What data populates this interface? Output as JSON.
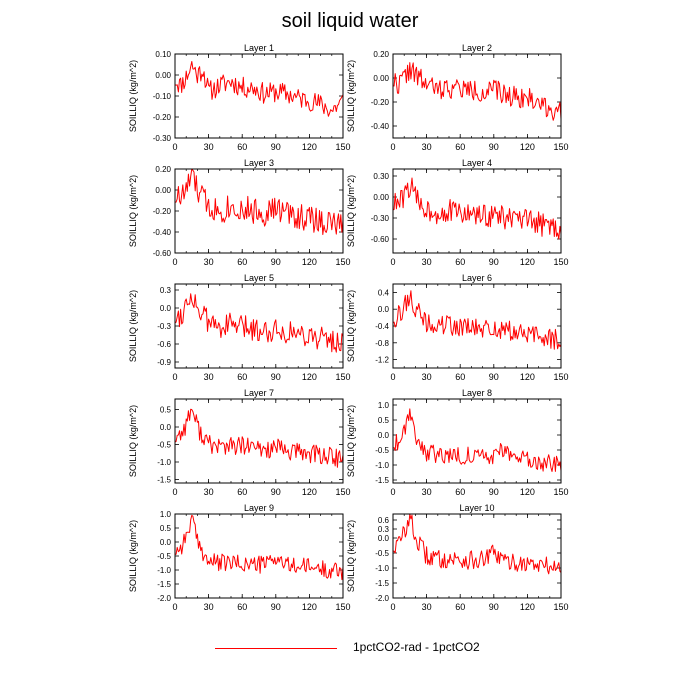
{
  "title": "soil liquid water",
  "legend": {
    "label": "1pctCO2-rad - 1pctCO2",
    "color": "#ff0000"
  },
  "chart_data": [
    {
      "type": "line",
      "title": "Layer 1",
      "ylabel": "SOILLIQ  (kg/m^2)",
      "xlim": [
        0,
        150
      ],
      "ylim": [
        -0.3,
        0.1
      ],
      "xticks": [
        "0",
        "30",
        "60",
        "90",
        "120",
        "150"
      ],
      "yticks": [
        "0.10",
        "0.00",
        "-0.10",
        "-0.20",
        "-0.30"
      ],
      "ytick_values": [
        0.1,
        0.0,
        -0.1,
        -0.2,
        -0.3
      ],
      "series": [
        {
          "color": "#ff0000",
          "anchors": [
            [
              0,
              -0.02
            ],
            [
              5,
              -0.05
            ],
            [
              10,
              -0.01
            ],
            [
              15,
              0.05
            ],
            [
              20,
              0.0
            ],
            [
              25,
              0.03
            ],
            [
              30,
              -0.08
            ],
            [
              40,
              -0.05
            ],
            [
              50,
              -0.03
            ],
            [
              60,
              -0.06
            ],
            [
              70,
              -0.06
            ],
            [
              80,
              -0.09
            ],
            [
              90,
              -0.08
            ],
            [
              100,
              -0.09
            ],
            [
              110,
              -0.11
            ],
            [
              120,
              -0.12
            ],
            [
              130,
              -0.14
            ],
            [
              140,
              -0.17
            ],
            [
              150,
              -0.12
            ]
          ],
          "amp": 0.05,
          "seed": 11
        }
      ]
    },
    {
      "type": "line",
      "title": "Layer 2",
      "ylabel": "SOILLIQ  (kg/m^2)",
      "xlim": [
        0,
        150
      ],
      "ylim": [
        -0.5,
        0.2
      ],
      "xticks": [
        "0",
        "30",
        "60",
        "90",
        "120",
        "150"
      ],
      "yticks": [
        "0.20",
        "0.00",
        "-0.20",
        "-0.40"
      ],
      "ytick_values": [
        0.2,
        0.0,
        -0.2,
        -0.4
      ],
      "series": [
        {
          "color": "#ff0000",
          "anchors": [
            [
              0,
              -0.02
            ],
            [
              5,
              -0.05
            ],
            [
              10,
              0.0
            ],
            [
              15,
              0.08
            ],
            [
              20,
              0.02
            ],
            [
              30,
              -0.05
            ],
            [
              40,
              -0.1
            ],
            [
              50,
              -0.08
            ],
            [
              60,
              -0.09
            ],
            [
              70,
              -0.1
            ],
            [
              80,
              -0.12
            ],
            [
              90,
              -0.1
            ],
            [
              100,
              -0.14
            ],
            [
              110,
              -0.15
            ],
            [
              120,
              -0.17
            ],
            [
              130,
              -0.2
            ],
            [
              140,
              -0.25
            ],
            [
              150,
              -0.3
            ]
          ],
          "amp": 0.09,
          "seed": 22
        }
      ]
    },
    {
      "type": "line",
      "title": "Layer 3",
      "ylabel": "SOILLIQ  (kg/m^2)",
      "xlim": [
        0,
        150
      ],
      "ylim": [
        -0.6,
        0.2
      ],
      "xticks": [
        "0",
        "30",
        "60",
        "90",
        "120",
        "150"
      ],
      "yticks": [
        "0.20",
        "0.00",
        "-0.20",
        "-0.40",
        "-0.60"
      ],
      "ytick_values": [
        0.2,
        0.0,
        -0.2,
        -0.4,
        -0.6
      ],
      "series": [
        {
          "color": "#ff0000",
          "anchors": [
            [
              0,
              -0.05
            ],
            [
              5,
              -0.08
            ],
            [
              10,
              0.0
            ],
            [
              15,
              0.15
            ],
            [
              20,
              0.0
            ],
            [
              30,
              -0.15
            ],
            [
              40,
              -0.2
            ],
            [
              50,
              -0.15
            ],
            [
              60,
              -0.18
            ],
            [
              70,
              -0.2
            ],
            [
              80,
              -0.22
            ],
            [
              90,
              -0.18
            ],
            [
              100,
              -0.22
            ],
            [
              110,
              -0.25
            ],
            [
              120,
              -0.27
            ],
            [
              130,
              -0.3
            ],
            [
              140,
              -0.32
            ],
            [
              150,
              -0.35
            ]
          ],
          "amp": 0.13,
          "seed": 33
        }
      ]
    },
    {
      "type": "line",
      "title": "Layer 4",
      "ylabel": "SOILLIQ  (kg/m^2)",
      "xlim": [
        0,
        150
      ],
      "ylim": [
        -0.8,
        0.4
      ],
      "xticks": [
        "0",
        "30",
        "60",
        "90",
        "120",
        "150"
      ],
      "yticks": [
        "0.30",
        "0.00",
        "-0.30",
        "-0.60"
      ],
      "ytick_values": [
        0.3,
        0.0,
        -0.3,
        -0.6
      ],
      "series": [
        {
          "color": "#ff0000",
          "anchors": [
            [
              0,
              -0.1
            ],
            [
              5,
              -0.1
            ],
            [
              10,
              0.0
            ],
            [
              15,
              0.18
            ],
            [
              20,
              0.0
            ],
            [
              30,
              -0.18
            ],
            [
              40,
              -0.22
            ],
            [
              50,
              -0.2
            ],
            [
              60,
              -0.23
            ],
            [
              70,
              -0.25
            ],
            [
              80,
              -0.28
            ],
            [
              90,
              -0.25
            ],
            [
              100,
              -0.3
            ],
            [
              110,
              -0.33
            ],
            [
              120,
              -0.35
            ],
            [
              130,
              -0.38
            ],
            [
              140,
              -0.42
            ],
            [
              150,
              -0.45
            ]
          ],
          "amp": 0.17,
          "seed": 44
        }
      ]
    },
    {
      "type": "line",
      "title": "Layer 5",
      "ylabel": "SOILLIQ  (kg/m^2)",
      "xlim": [
        0,
        150
      ],
      "ylim": [
        -1.0,
        0.4
      ],
      "xticks": [
        "0",
        "30",
        "60",
        "90",
        "120",
        "150"
      ],
      "yticks": [
        "0.3",
        "0.0",
        "-0.3",
        "-0.6",
        "-0.9"
      ],
      "ytick_values": [
        0.3,
        0.0,
        -0.3,
        -0.6,
        -0.9
      ],
      "series": [
        {
          "color": "#ff0000",
          "anchors": [
            [
              0,
              -0.15
            ],
            [
              5,
              -0.12
            ],
            [
              10,
              0.05
            ],
            [
              15,
              0.25
            ],
            [
              20,
              0.0
            ],
            [
              30,
              -0.25
            ],
            [
              40,
              -0.3
            ],
            [
              50,
              -0.28
            ],
            [
              60,
              -0.32
            ],
            [
              70,
              -0.35
            ],
            [
              80,
              -0.38
            ],
            [
              90,
              -0.35
            ],
            [
              100,
              -0.4
            ],
            [
              110,
              -0.42
            ],
            [
              120,
              -0.45
            ],
            [
              130,
              -0.5
            ],
            [
              140,
              -0.55
            ],
            [
              150,
              -0.58
            ]
          ],
          "amp": 0.2,
          "seed": 55
        }
      ]
    },
    {
      "type": "line",
      "title": "Layer 6",
      "ylabel": "SOILLIQ  (kg/m^2)",
      "xlim": [
        0,
        150
      ],
      "ylim": [
        -1.4,
        0.6
      ],
      "xticks": [
        "0",
        "30",
        "60",
        "90",
        "120",
        "150"
      ],
      "yticks": [
        "0.4",
        "0.0",
        "-0.4",
        "-0.8",
        "-1.2"
      ],
      "ytick_values": [
        0.4,
        0.0,
        -0.4,
        -0.8,
        -1.2
      ],
      "series": [
        {
          "color": "#ff0000",
          "anchors": [
            [
              0,
              -0.2
            ],
            [
              5,
              -0.15
            ],
            [
              10,
              0.05
            ],
            [
              15,
              0.35
            ],
            [
              20,
              0.0
            ],
            [
              30,
              -0.35
            ],
            [
              40,
              -0.4
            ],
            [
              50,
              -0.38
            ],
            [
              60,
              -0.42
            ],
            [
              70,
              -0.45
            ],
            [
              80,
              -0.5
            ],
            [
              90,
              -0.45
            ],
            [
              100,
              -0.52
            ],
            [
              110,
              -0.55
            ],
            [
              120,
              -0.6
            ],
            [
              130,
              -0.65
            ],
            [
              140,
              -0.7
            ],
            [
              150,
              -0.72
            ]
          ],
          "amp": 0.25,
          "seed": 66
        }
      ]
    },
    {
      "type": "line",
      "title": "Layer 7",
      "ylabel": "SOILLIQ  (kg/m^2)",
      "xlim": [
        0,
        150
      ],
      "ylim": [
        -1.6,
        0.8
      ],
      "xticks": [
        "0",
        "30",
        "60",
        "90",
        "120",
        "150"
      ],
      "yticks": [
        "0.5",
        "0.0",
        "-0.5",
        "-1.0",
        "-1.5"
      ],
      "ytick_values": [
        0.5,
        0.0,
        -0.5,
        -1.0,
        -1.5
      ],
      "series": [
        {
          "color": "#ff0000",
          "anchors": [
            [
              0,
              -0.3
            ],
            [
              5,
              -0.2
            ],
            [
              10,
              0.1
            ],
            [
              15,
              0.55
            ],
            [
              20,
              0.0
            ],
            [
              30,
              -0.5
            ],
            [
              40,
              -0.55
            ],
            [
              50,
              -0.55
            ],
            [
              60,
              -0.55
            ],
            [
              70,
              -0.6
            ],
            [
              80,
              -0.65
            ],
            [
              90,
              -0.6
            ],
            [
              100,
              -0.7
            ],
            [
              110,
              -0.72
            ],
            [
              120,
              -0.75
            ],
            [
              130,
              -0.8
            ],
            [
              140,
              -0.85
            ],
            [
              150,
              -0.95
            ]
          ],
          "amp": 0.28,
          "seed": 77
        }
      ]
    },
    {
      "type": "line",
      "title": "Layer 8",
      "ylabel": "SOILLIQ  (kg/m^2)",
      "xlim": [
        0,
        150
      ],
      "ylim": [
        -1.6,
        1.2
      ],
      "xticks": [
        "0",
        "30",
        "60",
        "90",
        "120",
        "150"
      ],
      "yticks": [
        "1.0",
        "0.5",
        "0.0",
        "-0.5",
        "-1.0",
        "-1.5"
      ],
      "ytick_values": [
        1.0,
        0.5,
        0.0,
        -0.5,
        -1.0,
        -1.5
      ],
      "series": [
        {
          "color": "#ff0000",
          "anchors": [
            [
              0,
              -0.3
            ],
            [
              5,
              -0.2
            ],
            [
              10,
              0.2
            ],
            [
              15,
              0.85
            ],
            [
              20,
              0.0
            ],
            [
              30,
              -0.6
            ],
            [
              40,
              -0.65
            ],
            [
              50,
              -0.65
            ],
            [
              60,
              -0.68
            ],
            [
              70,
              -0.7
            ],
            [
              80,
              -0.75
            ],
            [
              90,
              -0.7
            ],
            [
              100,
              -0.45
            ],
            [
              110,
              -0.8
            ],
            [
              120,
              -0.85
            ],
            [
              130,
              -0.9
            ],
            [
              140,
              -0.95
            ],
            [
              150,
              -1.05
            ]
          ],
          "amp": 0.3,
          "seed": 88
        }
      ]
    },
    {
      "type": "line",
      "title": "Layer 9",
      "ylabel": "SOILLIQ  (kg/m^2)",
      "xlim": [
        0,
        150
      ],
      "ylim": [
        -2.0,
        1.0
      ],
      "xticks": [
        "0",
        "30",
        "60",
        "90",
        "120",
        "150"
      ],
      "yticks": [
        "1.0",
        "0.5",
        "0.0",
        "-0.5",
        "-1.0",
        "-1.5",
        "-2.0"
      ],
      "ytick_values": [
        1.0,
        0.5,
        0.0,
        -0.5,
        -1.0,
        -1.5,
        -2.0
      ],
      "series": [
        {
          "color": "#ff0000",
          "anchors": [
            [
              0,
              -0.3
            ],
            [
              5,
              -0.2
            ],
            [
              10,
              0.2
            ],
            [
              15,
              0.85
            ],
            [
              20,
              0.0
            ],
            [
              30,
              -0.7
            ],
            [
              40,
              -0.75
            ],
            [
              50,
              -0.75
            ],
            [
              60,
              -0.78
            ],
            [
              70,
              -0.8
            ],
            [
              80,
              -0.8
            ],
            [
              90,
              -0.55
            ],
            [
              100,
              -0.85
            ],
            [
              110,
              -0.85
            ],
            [
              120,
              -0.9
            ],
            [
              130,
              -0.95
            ],
            [
              140,
              -1.0
            ],
            [
              150,
              -1.05
            ]
          ],
          "amp": 0.32,
          "seed": 99
        }
      ]
    },
    {
      "type": "line",
      "title": "Layer 10",
      "ylabel": "SOILLIQ  (kg/m^2)",
      "xlim": [
        0,
        150
      ],
      "ylim": [
        -2.0,
        0.8
      ],
      "xticks": [
        "0",
        "30",
        "60",
        "90",
        "120",
        "150"
      ],
      "yticks": [
        "0.6",
        "0.3",
        "0.0",
        "-0.5",
        "-1.0",
        "-1.5",
        "-2.0"
      ],
      "ytick_values": [
        0.6,
        0.3,
        0.0,
        -0.5,
        -1.0,
        -1.5,
        -2.0
      ],
      "series": [
        {
          "color": "#ff0000",
          "anchors": [
            [
              0,
              -0.3
            ],
            [
              5,
              -0.2
            ],
            [
              10,
              0.2
            ],
            [
              15,
              0.75
            ],
            [
              20,
              0.0
            ],
            [
              30,
              -0.6
            ],
            [
              40,
              -0.7
            ],
            [
              50,
              -0.7
            ],
            [
              60,
              -0.72
            ],
            [
              70,
              -0.75
            ],
            [
              80,
              -0.75
            ],
            [
              90,
              -0.5
            ],
            [
              100,
              -0.8
            ],
            [
              110,
              -0.82
            ],
            [
              120,
              -0.85
            ],
            [
              130,
              -0.9
            ],
            [
              140,
              -0.95
            ],
            [
              150,
              -1.0
            ]
          ],
          "amp": 0.32,
          "seed": 110
        }
      ]
    }
  ]
}
